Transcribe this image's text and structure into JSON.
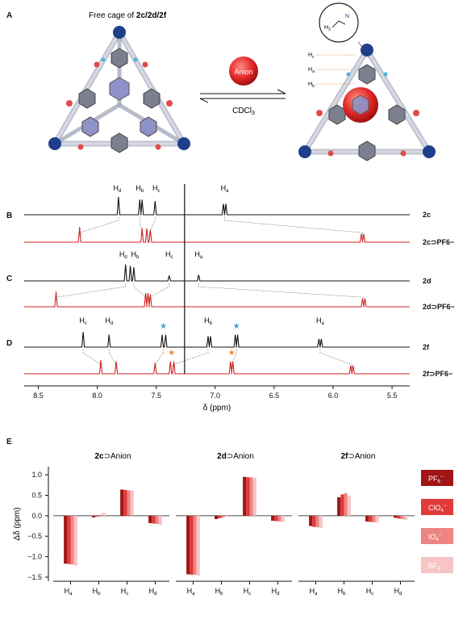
{
  "panels": {
    "A": "A",
    "B": "B",
    "C": "C",
    "D": "D",
    "E": "E"
  },
  "panel_a": {
    "title_prefix": "Free cage of ",
    "title_bold": "2c/2d/2f",
    "anion_label": "Anion",
    "solvent_main": "CDCl",
    "solvent_sub": "3",
    "labels": {
      "h3": "H",
      "h3_sub": "3",
      "n": "N",
      "hc": "H",
      "hc_sub": "c",
      "ha": "H",
      "ha_sub": "a",
      "hb": "H",
      "hb_sub": "b"
    }
  },
  "colors": {
    "free": "#111111",
    "bound": "#d42020",
    "dotted": "#555555",
    "star_blue": "#3aa0d8",
    "star_orange": "#f08a3a"
  },
  "nmr": {
    "xlabel": "δ (ppm)",
    "xlim": [
      8.62,
      5.35
    ],
    "ticks": [
      8.5,
      8.0,
      7.5,
      7.0,
      6.5,
      6.0,
      5.5
    ],
    "tick_labels": [
      "8.5",
      "8.0",
      "7.5",
      "7.0",
      "6.5",
      "6.0",
      "5.5"
    ],
    "solvent_peak": 7.26,
    "spectra": [
      {
        "id": "2c",
        "label": "2c",
        "bound": false,
        "peaks": [
          7.82,
          7.64,
          7.62,
          7.51,
          6.93,
          6.91
        ],
        "heights": [
          0.65,
          0.55,
          0.55,
          0.5,
          0.4,
          0.4
        ]
      },
      {
        "id": "2c-pf6",
        "label": "2c⊃PF6−",
        "bound": true,
        "peaks": [
          8.15,
          7.62,
          7.58,
          7.55,
          5.76,
          5.74
        ],
        "heights": [
          0.55,
          0.5,
          0.5,
          0.45,
          0.3,
          0.3
        ]
      },
      {
        "id": "2d",
        "label": "2d",
        "bound": false,
        "peaks": [
          7.76,
          7.72,
          7.69,
          7.39,
          7.14
        ],
        "heights": [
          0.6,
          0.55,
          0.5,
          0.2,
          0.22
        ]
      },
      {
        "id": "2d-pf6",
        "label": "2d⊃PF6−",
        "bound": true,
        "peaks": [
          8.35,
          7.59,
          7.57,
          7.55,
          5.75,
          5.73
        ],
        "heights": [
          0.55,
          0.5,
          0.5,
          0.45,
          0.3,
          0.3
        ]
      },
      {
        "id": "2f",
        "label": "2f",
        "bound": false,
        "peaks": [
          8.12,
          7.9,
          7.45,
          7.42,
          7.06,
          7.04,
          6.83,
          6.81,
          6.12,
          6.1
        ],
        "heights": [
          0.55,
          0.45,
          0.45,
          0.45,
          0.4,
          0.4,
          0.45,
          0.45,
          0.3,
          0.3
        ]
      },
      {
        "id": "2f-pf6",
        "label": "2f⊃PF6−",
        "bound": true,
        "peaks": [
          7.97,
          7.84,
          7.51,
          7.38,
          7.35,
          6.87,
          6.85,
          5.85,
          5.83
        ],
        "heights": [
          0.5,
          0.45,
          0.4,
          0.45,
          0.45,
          0.45,
          0.45,
          0.3,
          0.3
        ]
      }
    ],
    "peak_labels": [
      {
        "spectrum": "2c",
        "text": "H",
        "sub": "d",
        "ppm": 7.83
      },
      {
        "spectrum": "2c",
        "text": "H",
        "sub": "b",
        "ppm": 7.64
      },
      {
        "spectrum": "2c",
        "text": "H",
        "sub": "c",
        "ppm": 7.5
      },
      {
        "spectrum": "2c",
        "text": "H",
        "sub": "a",
        "ppm": 6.92
      },
      {
        "spectrum": "2d",
        "text": "H",
        "sub": "d",
        "ppm": 7.78
      },
      {
        "spectrum": "2d",
        "text": "H",
        "sub": "b",
        "ppm": 7.68
      },
      {
        "spectrum": "2d",
        "text": "H",
        "sub": "c",
        "ppm": 7.39
      },
      {
        "spectrum": "2d",
        "text": "H",
        "sub": "a",
        "ppm": 7.14
      },
      {
        "spectrum": "2f",
        "text": "H",
        "sub": "c",
        "ppm": 8.12
      },
      {
        "spectrum": "2f",
        "text": "H",
        "sub": "d",
        "ppm": 7.9
      },
      {
        "spectrum": "2f",
        "text": "H",
        "sub": "b",
        "ppm": 7.06
      },
      {
        "spectrum": "2f",
        "text": "H",
        "sub": "a",
        "ppm": 6.11
      }
    ],
    "stars": [
      {
        "spectrum": "2f",
        "ppm": 7.44,
        "color": "blue"
      },
      {
        "spectrum": "2f",
        "ppm": 6.82,
        "color": "blue"
      },
      {
        "spectrum": "2f-pf6",
        "ppm": 7.37,
        "color": "orange"
      },
      {
        "spectrum": "2f-pf6",
        "ppm": 6.86,
        "color": "orange"
      }
    ],
    "correlations": [
      {
        "from": "2c",
        "to": "2c-pf6",
        "pairs": [
          [
            7.82,
            8.15
          ],
          [
            7.64,
            7.62
          ],
          [
            7.51,
            7.56
          ],
          [
            6.92,
            5.75
          ]
        ]
      },
      {
        "from": "2d",
        "to": "2d-pf6",
        "pairs": [
          [
            7.76,
            8.35
          ],
          [
            7.69,
            7.59
          ],
          [
            7.39,
            7.56
          ],
          [
            7.14,
            5.74
          ]
        ]
      },
      {
        "from": "2f",
        "to": "2f-pf6",
        "pairs": [
          [
            8.12,
            7.97
          ],
          [
            7.9,
            7.84
          ],
          [
            7.44,
            7.51
          ],
          [
            7.06,
            7.36
          ],
          [
            6.82,
            6.86
          ],
          [
            6.11,
            5.84
          ]
        ]
      }
    ]
  },
  "chart_data": {
    "type": "bar",
    "ylabel": "Δδ (ppm)",
    "ylim": [
      -1.6,
      1.2
    ],
    "yticks": [
      -1.5,
      -1.0,
      -0.5,
      0.0,
      0.5,
      1.0
    ],
    "ytick_labels": [
      "−1.5",
      "−1.0",
      "−0.5",
      "0.0",
      "0.5",
      "1.0"
    ],
    "categories": [
      "Ha",
      "Hb",
      "Hc",
      "Hd"
    ],
    "category_subs": [
      "a",
      "b",
      "c",
      "d"
    ],
    "anions": [
      {
        "name": "PF6−",
        "base": "PF",
        "sub": "6",
        "sup": "−",
        "color": "#a01515"
      },
      {
        "name": "ClO4−",
        "base": "ClO",
        "sub": "4",
        "sup": "−",
        "color": "#e03a3a"
      },
      {
        "name": "IO4−",
        "base": "IO",
        "sub": "4",
        "sup": "−",
        "color": "#ee8585"
      },
      {
        "name": "BF4−",
        "base": "BF",
        "sub": "4",
        "sup": "−",
        "color": "#f7c4c4"
      }
    ],
    "groups": [
      {
        "title_bold": "2c",
        "title_rest": "⊃Anion",
        "values": [
          [
            -1.17,
            -1.18,
            -1.19,
            -1.22
          ],
          [
            -0.04,
            -0.02,
            0.02,
            0.07
          ],
          [
            0.64,
            0.63,
            0.62,
            0.62
          ],
          [
            -0.18,
            -0.19,
            -0.2,
            -0.22
          ]
        ]
      },
      {
        "title_bold": "2d",
        "title_rest": "⊃Anion",
        "values": [
          [
            -1.43,
            -1.44,
            -1.44,
            -1.46
          ],
          [
            -0.08,
            -0.06,
            -0.04,
            -0.02
          ],
          [
            0.95,
            0.94,
            0.94,
            0.93
          ],
          [
            -0.12,
            -0.13,
            -0.14,
            -0.15
          ]
        ]
      },
      {
        "title_bold": "2f",
        "title_rest": "⊃Anion",
        "values": [
          [
            -0.25,
            -0.27,
            -0.28,
            -0.3
          ],
          [
            0.45,
            0.52,
            0.55,
            0.49
          ],
          [
            -0.14,
            -0.15,
            -0.16,
            -0.17
          ],
          [
            -0.05,
            -0.07,
            -0.08,
            -0.1
          ]
        ]
      }
    ]
  }
}
